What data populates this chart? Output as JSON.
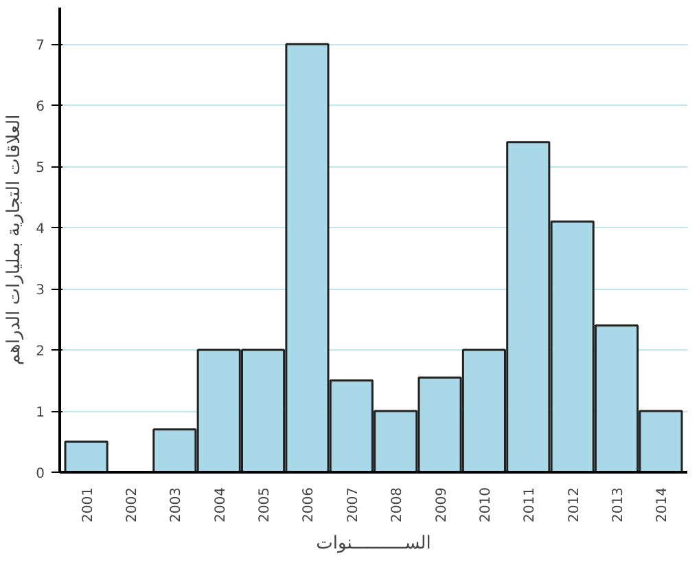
{
  "chart_data": {
    "type": "bar",
    "xlabel": "الســــــــــنوات",
    "ylabel": "العلاقات التجارية بمليارات الدراهم",
    "categories": [
      "2001",
      "2002",
      "2003",
      "2004",
      "2005",
      "2006",
      "2007",
      "2008",
      "2009",
      "2010",
      "2011",
      "2012",
      "2013",
      "2014"
    ],
    "values": [
      0.5,
      0,
      0.7,
      2,
      2,
      7,
      1.5,
      1,
      1.55,
      2,
      5.4,
      4.1,
      2.4,
      1
    ],
    "color": "#a9d8e9",
    "ylim": [
      0,
      7.6
    ],
    "yticks": [
      0,
      1,
      2,
      3,
      4,
      5,
      6,
      7
    ],
    "grid": "y"
  }
}
